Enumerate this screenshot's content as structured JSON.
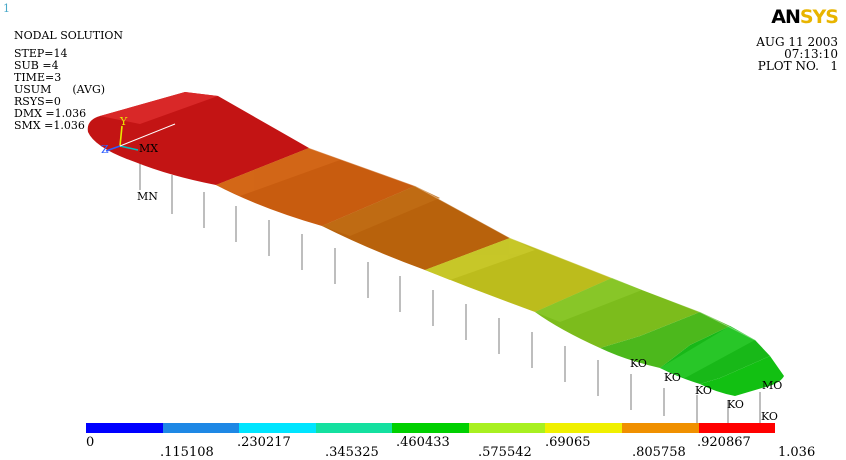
{
  "window_number": "1",
  "info": {
    "title": "NODAL SOLUTION",
    "step": "STEP=14",
    "sub": "SUB =4",
    "time": "TIME=3",
    "usum": "USUM      (AVG)",
    "rsys": "RSYS=0",
    "dmx": "DMX =1.036",
    "smx": "SMX =1.036"
  },
  "logo": {
    "an": "AN",
    "sys": "SYS"
  },
  "date": {
    "date": "AUG 11 2003",
    "time": "07:13:10",
    "plot_no": "PLOT NO.   1"
  },
  "triad": {
    "y": "Y",
    "z": "Z",
    "x": "X"
  },
  "node_labels": {
    "mn": "MN",
    "mx": "MX",
    "k1": "KO",
    "k2": "KO",
    "k3": "KO",
    "k4": "KO",
    "k5": "KO",
    "mo": "MO"
  },
  "legend": {
    "colors": [
      "#0000ff",
      "#1e88e5",
      "#00e5ff",
      "#14e0a0",
      "#00d000",
      "#a8f020",
      "#f0f000",
      "#f09000",
      "#ff0000"
    ],
    "labels_top": [
      "0",
      ".230217",
      ".460433",
      ".69065",
      ".920867"
    ],
    "labels_bottom": [
      ".115108",
      ".345325",
      ".575542",
      ".805758",
      "1.036"
    ]
  }
}
